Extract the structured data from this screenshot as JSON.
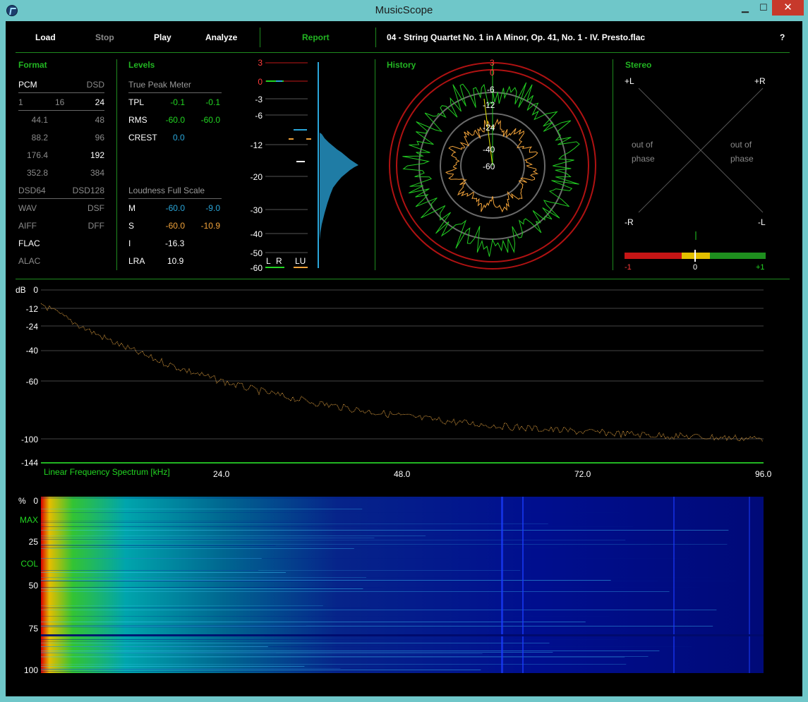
{
  "window": {
    "title": "MusicScope",
    "controls": {
      "minimize": "▁",
      "maximize": "☐",
      "close": "✕"
    }
  },
  "menu": {
    "load": "Load",
    "stop": "Stop",
    "play": "Play",
    "analyze": "Analyze",
    "report": "Report",
    "help": "?"
  },
  "track": {
    "title": "04 - String Quartet No. 1 in A Minor, Op. 41, No. 1 - IV. Presto.flac"
  },
  "format": {
    "title": "Format",
    "pcm": "PCM",
    "dsd": "DSD",
    "bits": [
      "1",
      "16",
      "24"
    ],
    "rates": [
      [
        "44.1",
        "48"
      ],
      [
        "88.2",
        "96"
      ],
      [
        "176.4",
        "192"
      ],
      [
        "352.8",
        "384"
      ]
    ],
    "dsd64": "DSD64",
    "dsd128": "DSD128",
    "containers": [
      [
        "WAV",
        "DSF"
      ],
      [
        "AIFF",
        "DFF"
      ],
      [
        "FLAC",
        ""
      ],
      [
        "ALAC",
        ""
      ]
    ]
  },
  "levels": {
    "title": "Levels",
    "true_peak_header": "True Peak Meter",
    "tpl": {
      "label": "TPL",
      "l": "-0.1",
      "r": "-0.1"
    },
    "rms": {
      "label": "RMS",
      "l": "-60.0",
      "r": "-60.0"
    },
    "crest": {
      "label": "CREST",
      "value": "0.0"
    },
    "loudness_header": "Loudness Full Scale",
    "m": {
      "label": "M",
      "a": "-60.0",
      "b": "-9.0"
    },
    "s": {
      "label": "S",
      "a": "-60.0",
      "b": "-10.9"
    },
    "i": {
      "label": "I",
      "value": "-16.3"
    },
    "lra": {
      "label": "LRA",
      "value": "10.9"
    }
  },
  "meter": {
    "scale": [
      "3",
      "0",
      "-3",
      "-6",
      "-12",
      "-20",
      "-30",
      "-40",
      "-50",
      "-60"
    ],
    "labels": {
      "l": "L",
      "r": "R",
      "lu": "LU"
    }
  },
  "history": {
    "title": "History",
    "scale": [
      "3",
      "0",
      "-6",
      "-12",
      "-24",
      "-40",
      "-60"
    ]
  },
  "stereo": {
    "title": "Stereo",
    "plus_l": "+L",
    "plus_r": "+R",
    "minus_r": "-R",
    "minus_l": "-L",
    "out_of_phase": "out of",
    "phase": "phase",
    "scale": [
      "-1",
      "0",
      "+1"
    ]
  },
  "spectrum": {
    "db_label": "dB",
    "y_ticks": [
      "0",
      "-12",
      "-24",
      "-40",
      "-60",
      "-100",
      "-144"
    ],
    "x_label": "Linear Frequency Spectrum [kHz]",
    "x_ticks": [
      "24.0",
      "48.0",
      "72.0",
      "96.0"
    ]
  },
  "spectrogram": {
    "pct_label": "%",
    "y_labels": [
      "0",
      "MAX",
      "25",
      "COL",
      "50",
      "75",
      "100"
    ]
  },
  "colors": {
    "accent": "#22b522",
    "cyan": "#2aa6d9",
    "orange": "#f2a33a",
    "titlebar": "#6fc7c9"
  }
}
